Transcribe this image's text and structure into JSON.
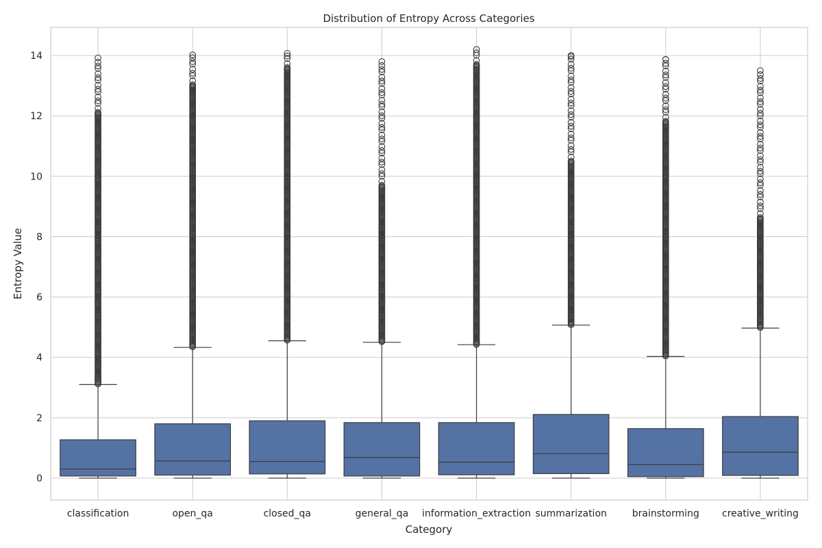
{
  "chart_data": {
    "type": "box",
    "title": "Distribution of Entropy Across Categories",
    "xlabel": "Category",
    "ylabel": "Entropy Value",
    "ylim": [
      -0.75,
      14.9
    ],
    "yticks": [
      0,
      2,
      4,
      6,
      8,
      10,
      12,
      14
    ],
    "grid": true,
    "box_color": "#5572a5",
    "line_color": "#3b3b3b",
    "categories": [
      "classification",
      "open_qa",
      "closed_qa",
      "general_qa",
      "information_extraction",
      "summarization",
      "brainstorming",
      "creative_writing"
    ],
    "boxes": [
      {
        "whisker_low": 0.0,
        "q1": 0.07,
        "median": 0.3,
        "q3": 1.27,
        "whisker_high": 3.1,
        "outlier_min": 3.12,
        "outlier_max": 13.92,
        "sparse_from": 12.1
      },
      {
        "whisker_low": 0.0,
        "q1": 0.1,
        "median": 0.57,
        "q3": 1.8,
        "whisker_high": 4.33,
        "outlier_min": 4.35,
        "outlier_max": 14.02,
        "sparse_from": 13.0
      },
      {
        "whisker_low": 0.0,
        "q1": 0.14,
        "median": 0.55,
        "q3": 1.9,
        "whisker_high": 4.55,
        "outlier_min": 4.57,
        "outlier_max": 14.07,
        "sparse_from": 13.6
      },
      {
        "whisker_low": 0.0,
        "q1": 0.07,
        "median": 0.68,
        "q3": 1.84,
        "whisker_high": 4.5,
        "outlier_min": 4.52,
        "outlier_max": 13.8,
        "sparse_from": 9.7
      },
      {
        "whisker_low": 0.0,
        "q1": 0.11,
        "median": 0.53,
        "q3": 1.84,
        "whisker_high": 4.42,
        "outlier_min": 4.43,
        "outlier_max": 14.2,
        "sparse_from": 13.7
      },
      {
        "whisker_low": 0.0,
        "q1": 0.15,
        "median": 0.81,
        "q3": 2.11,
        "whisker_high": 5.07,
        "outlier_min": 5.08,
        "outlier_max": 14.0,
        "sparse_from": 10.5
      },
      {
        "whisker_low": 0.0,
        "q1": 0.05,
        "median": 0.45,
        "q3": 1.64,
        "whisker_high": 4.03,
        "outlier_min": 4.05,
        "outlier_max": 13.87,
        "sparse_from": 11.8
      },
      {
        "whisker_low": 0.0,
        "q1": 0.09,
        "median": 0.86,
        "q3": 2.04,
        "whisker_high": 4.97,
        "outlier_min": 4.99,
        "outlier_max": 13.5,
        "sparse_from": 8.6
      }
    ]
  }
}
